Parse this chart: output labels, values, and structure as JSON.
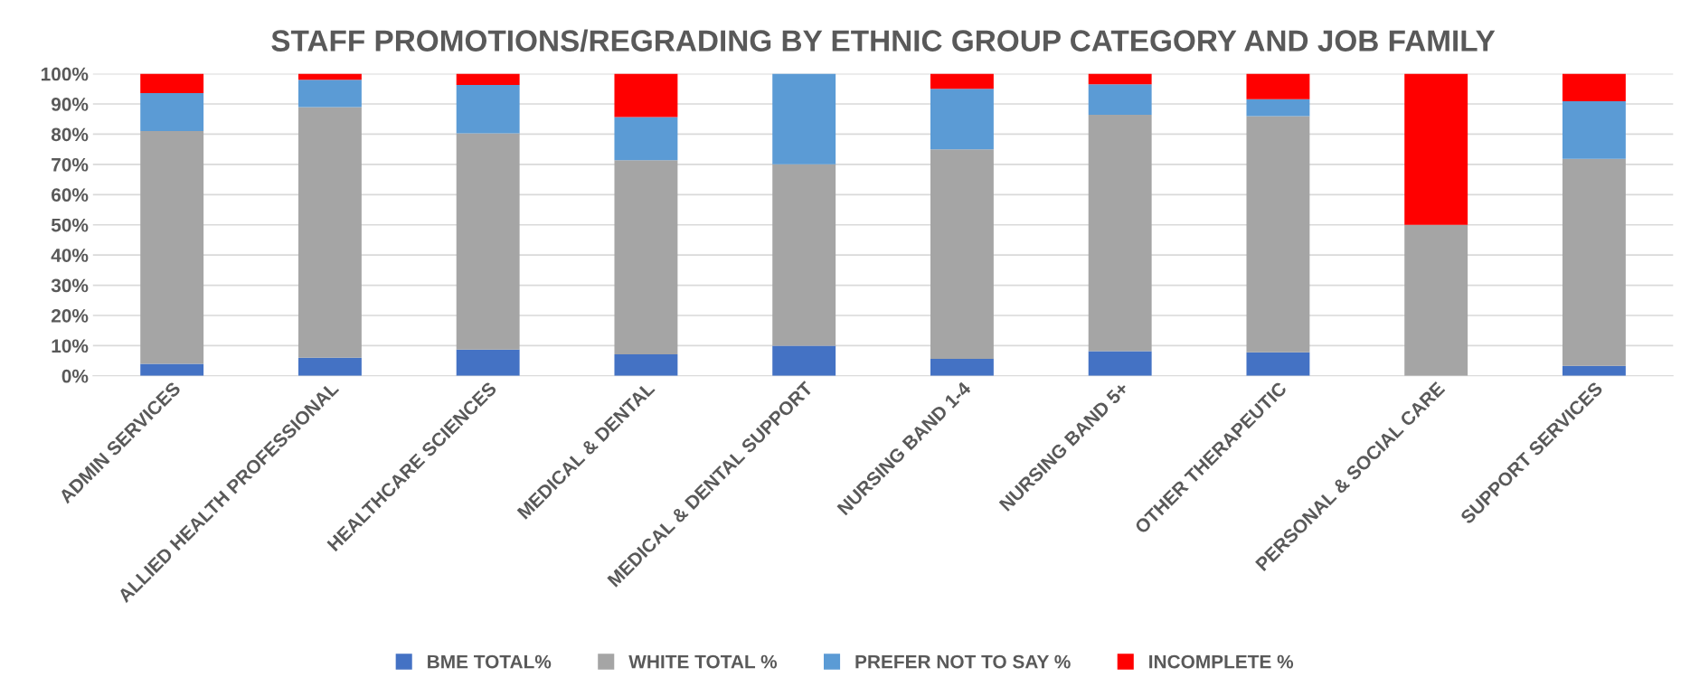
{
  "chart_data": {
    "type": "bar",
    "stacked": true,
    "title": "STAFF PROMOTIONS/REGRADING BY ETHNIC GROUP CATEGORY AND JOB FAMILY",
    "categories": [
      "ADMIN SERVICES",
      "ALLIED HEALTH PROFESSIONAL",
      "HEALTHCARE SCIENCES",
      "MEDICAL & DENTAL",
      "MEDICAL & DENTAL SUPPORT",
      "NURSING BAND 1-4",
      "NURSING BAND 5+",
      "OTHER THERAPEUTIC",
      "PERSONAL & SOCIAL CARE",
      "SUPPORT SERVICES"
    ],
    "series": [
      {
        "name": "BME TOTAL%",
        "color": "#4472c4",
        "values": [
          4,
          6,
          8.7,
          7.1,
          10,
          5.6,
          8.2,
          7.8,
          0,
          3.3
        ]
      },
      {
        "name": "WHITE TOTAL %",
        "color": "#a5a5a5",
        "values": [
          77,
          83,
          71.6,
          64.3,
          60,
          69.4,
          78.2,
          78.2,
          50,
          68.5
        ]
      },
      {
        "name": "PREFER NOT TO SAY %",
        "color": "#5b9bd5",
        "values": [
          12.6,
          9,
          16,
          14.3,
          30,
          20,
          10.1,
          5.6,
          0,
          19.1
        ]
      },
      {
        "name": "INCOMPLETE %",
        "color": "#ff0000",
        "values": [
          6.4,
          2,
          3.7,
          14.3,
          0,
          5,
          3.5,
          8.4,
          50,
          9.1
        ]
      }
    ],
    "ylim": [
      0,
      100
    ],
    "yticks": [
      {
        "value": 0,
        "label": "0%"
      },
      {
        "value": 10,
        "label": "10%"
      },
      {
        "value": 20,
        "label": "20%"
      },
      {
        "value": 30,
        "label": "30%"
      },
      {
        "value": 40,
        "label": "40%"
      },
      {
        "value": 50,
        "label": "50%"
      },
      {
        "value": 60,
        "label": "60%"
      },
      {
        "value": 70,
        "label": "70%"
      },
      {
        "value": 80,
        "label": "80%"
      },
      {
        "value": 90,
        "label": "90%"
      },
      {
        "value": 100,
        "label": "100%"
      }
    ],
    "grid": "y",
    "legend": "bottom"
  }
}
